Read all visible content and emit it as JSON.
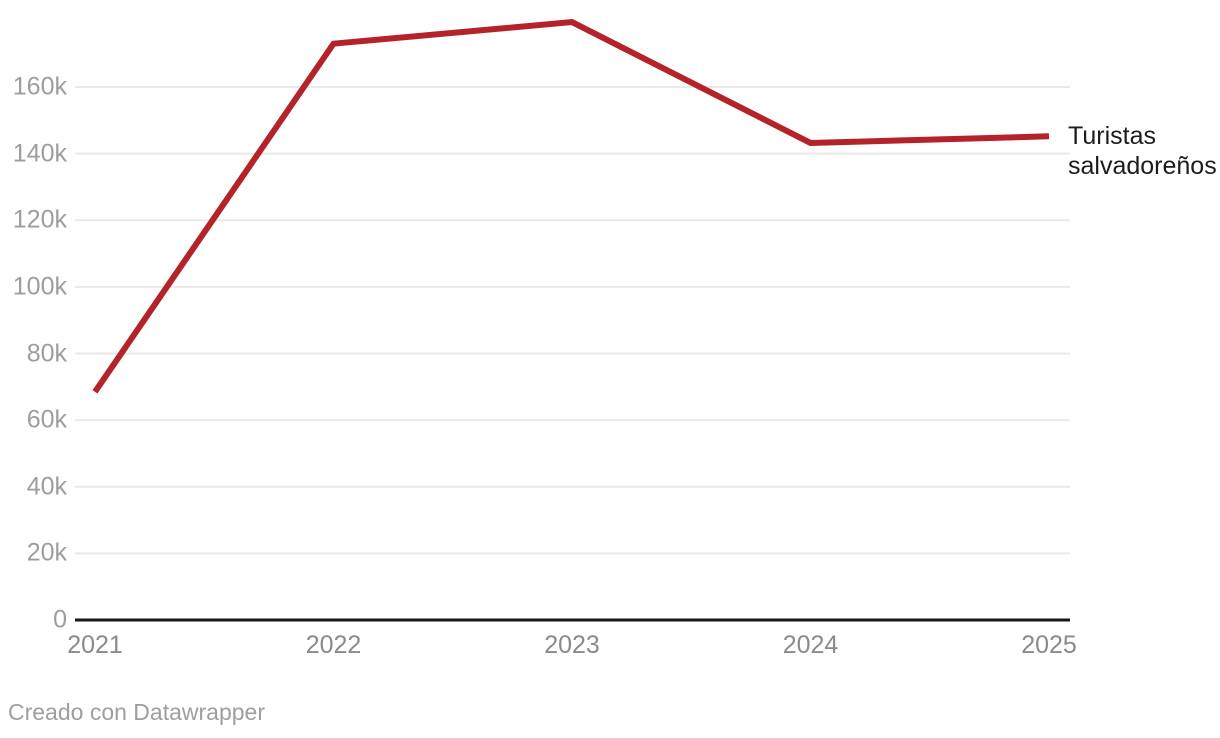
{
  "chart_data": {
    "type": "line",
    "categories": [
      "2021",
      "2022",
      "2023",
      "2024",
      "2025"
    ],
    "series": [
      {
        "name": "Turistas salvadoreños",
        "values": [
          68500,
          173000,
          179500,
          143200,
          145200
        ]
      }
    ],
    "title": "",
    "xlabel": "",
    "ylabel": "",
    "ylim": [
      0,
      186000
    ],
    "yticks": [
      {
        "label": "0",
        "value": 0
      },
      {
        "label": "20k",
        "value": 20000
      },
      {
        "label": "40k",
        "value": 40000
      },
      {
        "label": "60k",
        "value": 60000
      },
      {
        "label": "80k",
        "value": 80000
      },
      {
        "label": "100k",
        "value": 100000
      },
      {
        "label": "120k",
        "value": 120000
      },
      {
        "label": "140k",
        "value": 140000
      },
      {
        "label": "160k",
        "value": 160000
      }
    ],
    "grid": true,
    "legend_position": "end-of-line-label"
  },
  "footer": {
    "attribution": "Creado con Datawrapper"
  },
  "colors": {
    "line": "#b4232a",
    "grid": "#e9e9e9",
    "axis_line": "#161616",
    "y_tick_text": "#9d9d9d",
    "x_tick_text": "#8a8a8a",
    "series_label_text": "#1c1c1e",
    "attribution_text": "#9e9e9e",
    "background": "#ffffff"
  }
}
